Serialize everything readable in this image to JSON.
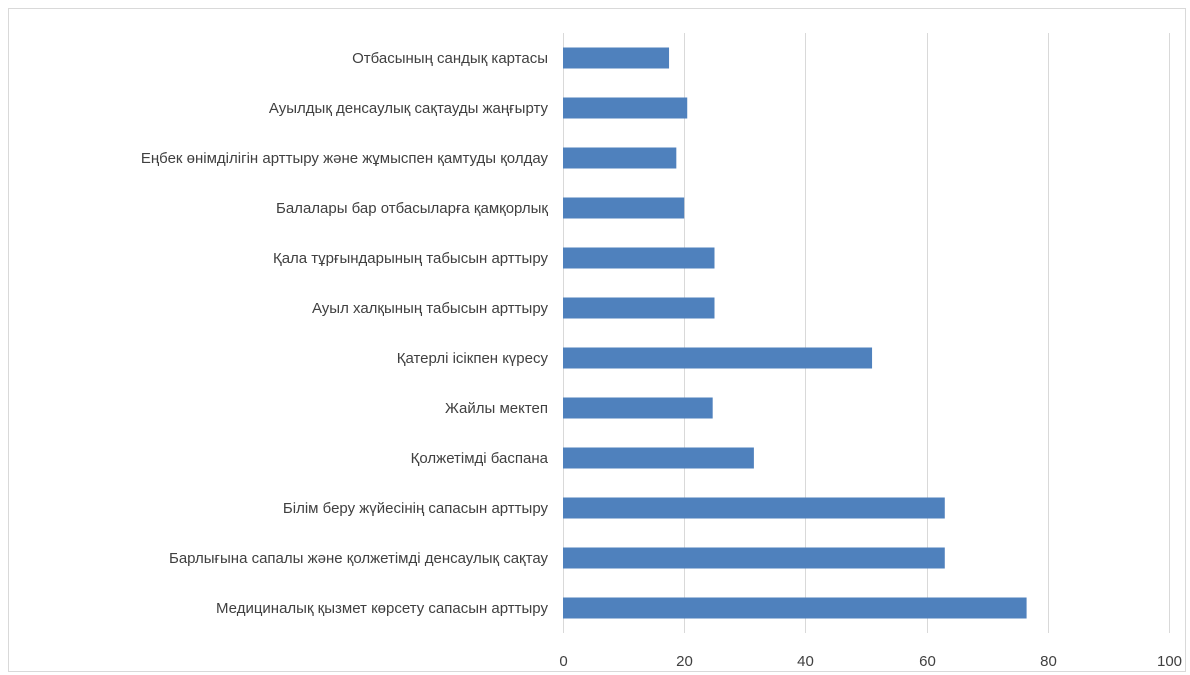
{
  "chart_data": {
    "type": "bar",
    "orientation": "horizontal",
    "categories": [
      "Отбасының сандық картасы",
      "Ауылдық денсаулық сақтауды жаңғырту",
      "Еңбек өнімділігін арттыру және жұмыспен қамтуды қолдау",
      "Балалары бар отбасыларға қамқорлық",
      "Қала тұрғындарының табысын арттыру",
      "Ауыл халқының табысын арттыру",
      "Қатерлі ісікпен күресу",
      "Жайлы мектеп",
      "Қолжетімді баспана",
      "Білім беру жүйесінің сапасын арттыру",
      "Барлығына сапалы және қолжетімді денсаулық сақтау",
      "Медициналық қызмет көрсету сапасын арттыру"
    ],
    "values": [
      17.5,
      20.5,
      18.7,
      20,
      25,
      25,
      51,
      24.7,
      31.5,
      63,
      63,
      76.5
    ],
    "xlim": [
      0,
      100
    ],
    "xticks": [
      0,
      20,
      40,
      60,
      80,
      100
    ],
    "xtick_labels": [
      "0",
      "20",
      "40",
      "60",
      "80",
      "100"
    ],
    "grid": "vertical",
    "bar_color": "#4f81bd",
    "grid_color": "#d9d9d9",
    "legend": "none"
  }
}
